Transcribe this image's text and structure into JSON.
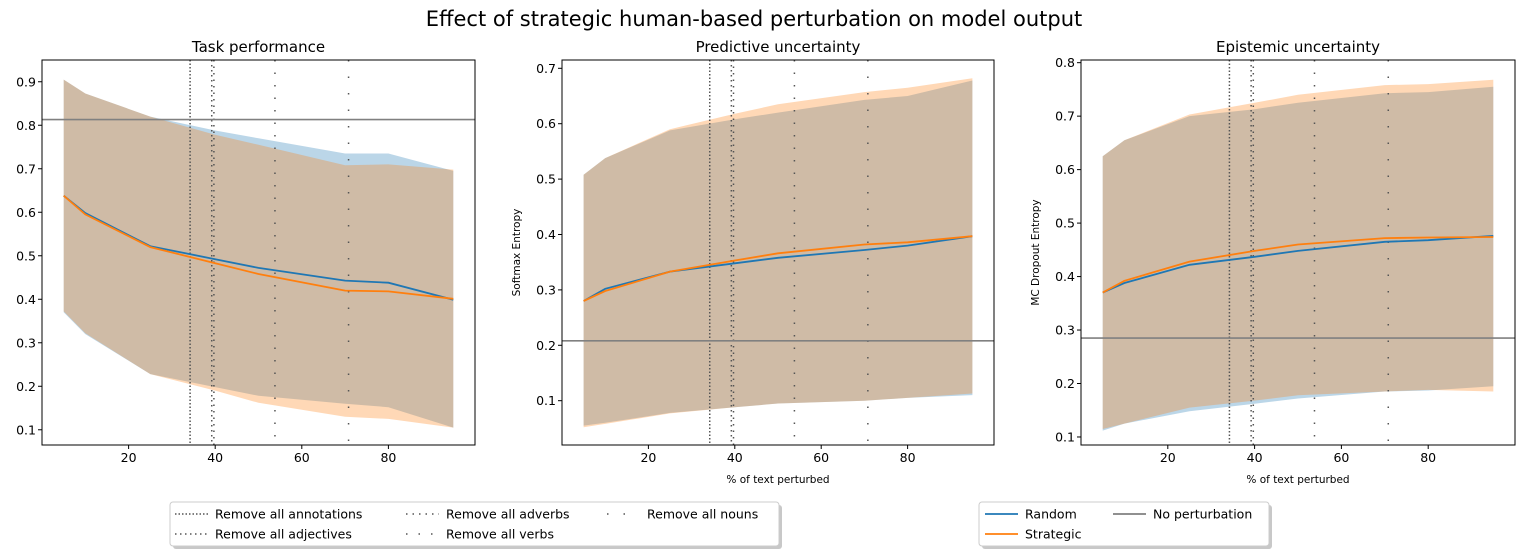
{
  "suptitle": "Effect of strategic human-based perturbation on model output",
  "colors": {
    "random": "#1f77b4",
    "strategic": "#ff7f0e",
    "random_fill": "#1f77b4",
    "strategic_fill": "#ff7f0e",
    "baseline": "#808080",
    "vline": "#555555",
    "spine": "#000000"
  },
  "chart_data": [
    {
      "type": "line",
      "title": "Task performance",
      "xlabel": "",
      "ylabel": "",
      "xlim": [
        0,
        100
      ],
      "ylim": [
        0.065,
        0.95
      ],
      "xticks": [
        20,
        40,
        60,
        80
      ],
      "yticks": [
        0.1,
        0.2,
        0.3,
        0.4,
        0.5,
        0.6,
        0.7,
        0.8,
        0.9
      ],
      "x": [
        5,
        10,
        25,
        40,
        50,
        70,
        80,
        95
      ],
      "baseline": 0.813,
      "series": [
        {
          "name": "Random",
          "values": [
            0.638,
            0.598,
            0.522,
            0.492,
            0.472,
            0.443,
            0.438,
            0.399
          ],
          "lower": [
            0.37,
            0.32,
            0.228,
            0.198,
            0.178,
            0.16,
            0.152,
            0.105
          ],
          "upper": [
            0.905,
            0.873,
            0.82,
            0.788,
            0.77,
            0.735,
            0.735,
            0.695
          ]
        },
        {
          "name": "Strategic",
          "values": [
            0.638,
            0.595,
            0.52,
            0.483,
            0.458,
            0.42,
            0.418,
            0.401
          ],
          "lower": [
            0.372,
            0.322,
            0.228,
            0.19,
            0.162,
            0.13,
            0.125,
            0.105
          ],
          "upper": [
            0.905,
            0.873,
            0.82,
            0.778,
            0.755,
            0.708,
            0.71,
            0.698
          ]
        }
      ]
    },
    {
      "type": "line",
      "title": "Predictive uncertainty",
      "xlabel": "% of text perturbed",
      "ylabel": "Softmax Entropy",
      "xlim": [
        0,
        100
      ],
      "ylim": [
        0.02,
        0.715
      ],
      "xticks": [
        20,
        40,
        60,
        80
      ],
      "yticks": [
        0.1,
        0.2,
        0.3,
        0.4,
        0.5,
        0.6,
        0.7
      ],
      "x": [
        5,
        10,
        25,
        40,
        50,
        70,
        80,
        95
      ],
      "baseline": 0.208,
      "series": [
        {
          "name": "Random",
          "values": [
            0.28,
            0.302,
            0.333,
            0.348,
            0.358,
            0.372,
            0.38,
            0.397
          ],
          "lower": [
            0.055,
            0.06,
            0.078,
            0.088,
            0.095,
            0.1,
            0.105,
            0.11
          ],
          "upper": [
            0.508,
            0.538,
            0.588,
            0.608,
            0.62,
            0.643,
            0.65,
            0.678
          ]
        },
        {
          "name": "Strategic",
          "values": [
            0.28,
            0.298,
            0.333,
            0.353,
            0.366,
            0.382,
            0.386,
            0.397
          ],
          "lower": [
            0.052,
            0.058,
            0.077,
            0.088,
            0.095,
            0.1,
            0.105,
            0.113
          ],
          "upper": [
            0.508,
            0.538,
            0.59,
            0.618,
            0.635,
            0.657,
            0.665,
            0.682
          ]
        }
      ]
    },
    {
      "type": "line",
      "title": "Epistemic uncertainty",
      "xlabel": "% of text perturbed",
      "ylabel": "MC Dropout Entropy",
      "xlim": [
        0,
        100
      ],
      "ylim": [
        0.085,
        0.805
      ],
      "xticks": [
        20,
        40,
        60,
        80
      ],
      "yticks": [
        0.1,
        0.2,
        0.3,
        0.4,
        0.5,
        0.6,
        0.7,
        0.8
      ],
      "x": [
        5,
        10,
        25,
        40,
        50,
        70,
        80,
        95
      ],
      "baseline": 0.285,
      "series": [
        {
          "name": "Random",
          "values": [
            0.37,
            0.388,
            0.422,
            0.437,
            0.448,
            0.465,
            0.468,
            0.476
          ],
          "lower": [
            0.112,
            0.125,
            0.148,
            0.162,
            0.172,
            0.185,
            0.187,
            0.195
          ],
          "upper": [
            0.625,
            0.655,
            0.7,
            0.713,
            0.725,
            0.743,
            0.745,
            0.755
          ]
        },
        {
          "name": "Strategic",
          "values": [
            0.37,
            0.392,
            0.428,
            0.448,
            0.46,
            0.472,
            0.473,
            0.474
          ],
          "lower": [
            0.115,
            0.125,
            0.155,
            0.168,
            0.178,
            0.185,
            0.188,
            0.185
          ],
          "upper": [
            0.625,
            0.655,
            0.703,
            0.725,
            0.74,
            0.758,
            0.76,
            0.768
          ]
        }
      ]
    }
  ],
  "vlines": [
    {
      "x": 34.2,
      "label": "Remove all annotations",
      "dash": "1.5,2"
    },
    {
      "x": 39.2,
      "label": "Remove all adjectives",
      "dash": "1.5,3.5"
    },
    {
      "x": 39.7,
      "label": "Remove all adverbs",
      "dash": "1.5,5"
    },
    {
      "x": 53.8,
      "label": "Remove all verbs",
      "dash": "1.5,11"
    },
    {
      "x": 70.8,
      "label": "Remove all nouns",
      "dash": "1.5,15"
    }
  ],
  "legend_vlines": {
    "items": [
      {
        "label": "Remove all annotations",
        "dash": "1.5,2"
      },
      {
        "label": "Remove all adjectives",
        "dash": "1.5,3.5"
      },
      {
        "label": "Remove all adverbs",
        "dash": "1.5,5"
      },
      {
        "label": "Remove all verbs",
        "dash": "1.5,11"
      },
      {
        "label": "Remove all nouns",
        "dash": "1.5,15"
      }
    ]
  },
  "legend_lines": {
    "items": [
      {
        "label": "Random",
        "color": "#1f77b4"
      },
      {
        "label": "Strategic",
        "color": "#ff7f0e"
      },
      {
        "label": "No perturbation",
        "color": "#808080"
      }
    ]
  }
}
